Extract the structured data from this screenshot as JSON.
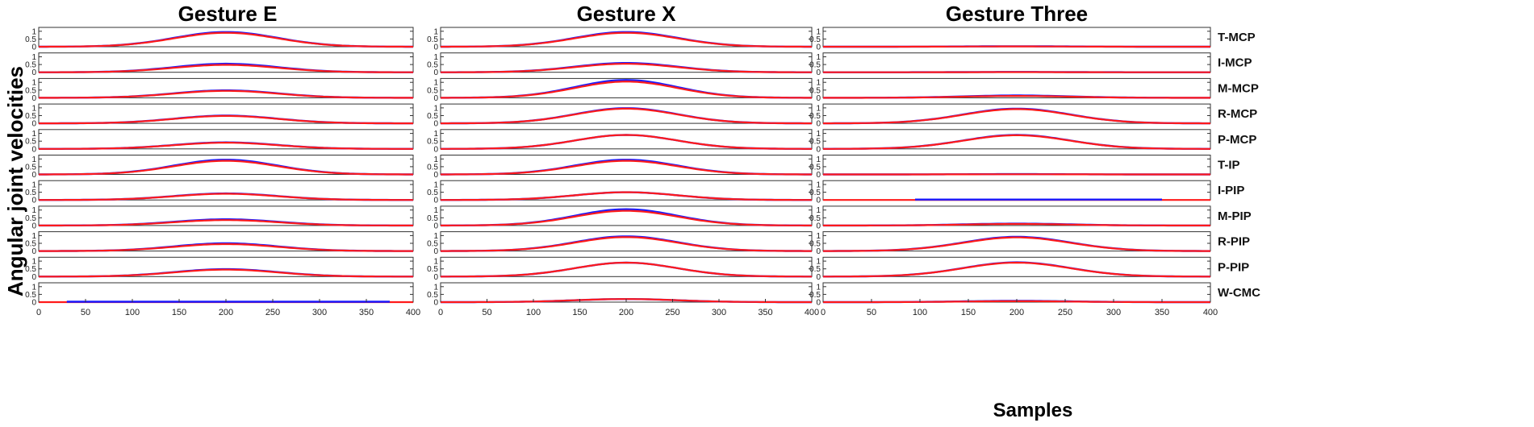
{
  "chart_data": {
    "type": "line",
    "ylabel": "Angular joint velocities",
    "xlabel": "Samples",
    "xlim": [
      0,
      400
    ],
    "xticks": [
      0,
      50,
      100,
      150,
      200,
      250,
      300,
      350,
      400
    ],
    "ylim": [
      0,
      1
    ],
    "yticks": [
      "1",
      "0.5",
      "0"
    ],
    "columns": [
      "Gesture E",
      "Gesture X",
      "Gesture Three"
    ],
    "rows": [
      "T-MCP",
      "I-MCP",
      "M-MCP",
      "R-MCP",
      "P-MCP",
      "T-IP",
      "I-PIP",
      "M-PIP",
      "R-PIP",
      "P-PIP",
      "W-CMC"
    ],
    "colors": {
      "series_a": "#1a1aff",
      "series_b": "#ff1a1a"
    },
    "curve_shape": {
      "center": 200,
      "width": 55
    },
    "peaks": {
      "Gesture E": [
        {
          "blue": 0.95,
          "red": 0.9
        },
        {
          "blue": 0.55,
          "red": 0.48
        },
        {
          "blue": 0.48,
          "red": 0.45
        },
        {
          "blue": 0.5,
          "red": 0.48
        },
        {
          "blue": 0.42,
          "red": 0.4
        },
        {
          "blue": 0.95,
          "red": 0.88
        },
        {
          "blue": 0.42,
          "red": 0.4
        },
        {
          "blue": 0.4,
          "red": 0.35
        },
        {
          "blue": 0.5,
          "red": 0.45
        },
        {
          "blue": 0.48,
          "red": 0.45
        },
        {
          "blue": 0.0,
          "red": 0.0,
          "blue_flat": [
            30,
            375
          ]
        }
      ],
      "Gesture X": [
        {
          "blue": 0.95,
          "red": 0.9
        },
        {
          "blue": 0.6,
          "red": 0.55
        },
        {
          "blue": 1.15,
          "red": 1.05
        },
        {
          "blue": 0.98,
          "red": 0.95
        },
        {
          "blue": 0.9,
          "red": 0.9
        },
        {
          "blue": 0.95,
          "red": 0.88
        },
        {
          "blue": 0.5,
          "red": 0.5
        },
        {
          "blue": 1.05,
          "red": 0.95
        },
        {
          "blue": 0.95,
          "red": 0.9
        },
        {
          "blue": 0.9,
          "red": 0.9
        },
        {
          "blue": 0.2,
          "red": 0.2
        }
      ],
      "Gesture Three": [
        {
          "blue": 0.03,
          "red": 0.02
        },
        {
          "blue": 0.02,
          "red": 0.01
        },
        {
          "blue": 0.15,
          "red": 0.12
        },
        {
          "blue": 0.95,
          "red": 0.92
        },
        {
          "blue": 0.9,
          "red": 0.88
        },
        {
          "blue": 0.02,
          "red": 0.01
        },
        {
          "blue": 0.0,
          "red": 0.0,
          "blue_flat": [
            95,
            350
          ]
        },
        {
          "blue": 0.12,
          "red": 0.1
        },
        {
          "blue": 0.92,
          "red": 0.88
        },
        {
          "blue": 0.92,
          "red": 0.9
        },
        {
          "blue": 0.08,
          "red": 0.06
        }
      ]
    }
  }
}
